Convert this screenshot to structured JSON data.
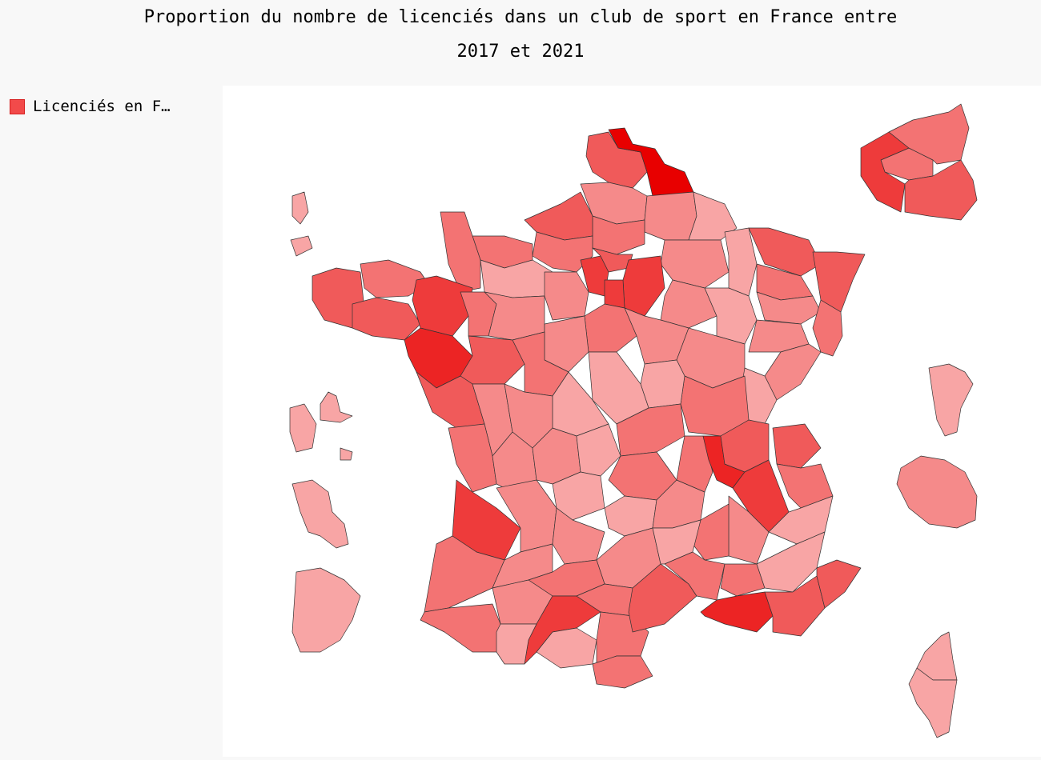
{
  "title": {
    "line1": "Proportion du nombre de licenciés dans un club de sport en France entre",
    "line2": "2017 et 2021"
  },
  "legend": {
    "label": "Licenciés en F…",
    "color": "#f24a4a"
  },
  "palette": {
    "lightest": "#f8a5a5",
    "light": "#f58a8a",
    "medium": "#f37373",
    "medium_dark": "#f05a5a",
    "dark": "#ee3b3b",
    "darker": "#ec2424",
    "darkest": "#e80000"
  }
}
